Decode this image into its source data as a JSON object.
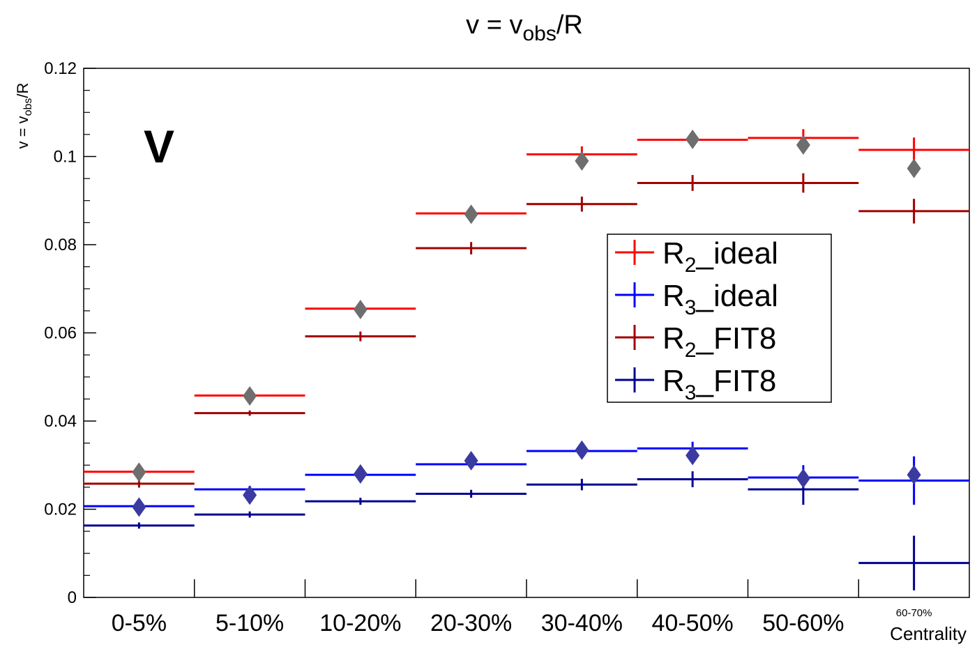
{
  "chart_data": {
    "type": "scatter",
    "title_parts": {
      "a": "v = v",
      "sub": "obs",
      "b": "/R"
    },
    "ylabel_parts": {
      "a": "v = v",
      "sub": "obs",
      "b": "/R"
    },
    "xlabel": "Centrality",
    "annotation": "V",
    "ylim": [
      0,
      0.12
    ],
    "yticks": [
      "0",
      "0.02",
      "0.04",
      "0.06",
      "0.08",
      "0.1",
      "0.12"
    ],
    "categories": [
      "0-5%",
      "5-10%",
      "10-20%",
      "20-30%",
      "30-40%",
      "40-50%",
      "50-60%",
      "60-70%"
    ],
    "legend_position": "center-right",
    "series": [
      {
        "name_main": "R",
        "name_sub": "2",
        "name_rest": "_ideal",
        "color": "#ff0000",
        "values": [
          0.0285,
          0.0458,
          0.0655,
          0.0871,
          0.1005,
          0.1038,
          0.1042,
          0.1015
        ],
        "errors": [
          0.001,
          0.0007,
          0.0009,
          0.0009,
          0.0018,
          0.0018,
          0.002,
          0.0028
        ]
      },
      {
        "name_main": "R",
        "name_sub": "3",
        "name_rest": "_ideal",
        "color": "#0000ff",
        "values": [
          0.0207,
          0.0245,
          0.0278,
          0.0302,
          0.0332,
          0.0338,
          0.0272,
          0.0265
        ],
        "errors": [
          0.0007,
          0.0008,
          0.0008,
          0.0009,
          0.001,
          0.0015,
          0.0028,
          0.0055
        ]
      },
      {
        "name_main": "R",
        "name_sub": "2",
        "name_rest": "_FIT8",
        "color": "#a00000",
        "values": [
          0.0258,
          0.0418,
          0.0592,
          0.0792,
          0.0892,
          0.094,
          0.094,
          0.0876
        ],
        "errors": [
          0.0009,
          0.0006,
          0.0011,
          0.0014,
          0.0017,
          0.0018,
          0.0022,
          0.0028
        ]
      },
      {
        "name_main": "R",
        "name_sub": "3",
        "name_rest": "_FIT8",
        "color": "#000090",
        "values": [
          0.0163,
          0.0188,
          0.0218,
          0.0235,
          0.0256,
          0.0268,
          0.0245,
          0.0078
        ],
        "errors": [
          0.0007,
          0.0007,
          0.0008,
          0.0009,
          0.0013,
          0.0018,
          0.0035,
          0.0062
        ]
      }
    ],
    "observed_points": {
      "v2_values": [
        0.0284,
        0.0457,
        0.0653,
        0.0869,
        0.099,
        0.1039,
        0.1026,
        0.0973
      ],
      "v3_values": [
        0.0205,
        0.0232,
        0.028,
        0.031,
        0.0334,
        0.0322,
        0.027,
        0.0278
      ],
      "v2_color": "#6e6e6e",
      "v3_color": "#3a3aa0"
    }
  }
}
